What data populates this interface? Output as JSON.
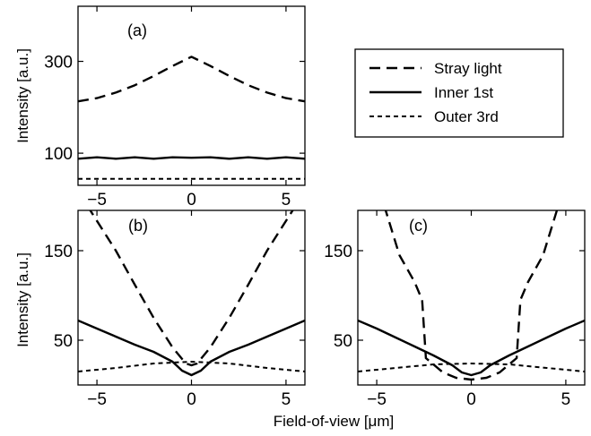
{
  "figure": {
    "xlabel": "Field-of-view [μm]",
    "ylabel": "Intensity [a.u.]"
  },
  "legend": {
    "placement": "top-right",
    "entries": [
      {
        "label": "Stray light",
        "style": "long-dash"
      },
      {
        "label": "Inner 1st",
        "style": "solid"
      },
      {
        "label": "Outer 3rd",
        "style": "short-dash"
      }
    ]
  },
  "chart_data": [
    {
      "panel": "a",
      "label": "(a)",
      "type": "line",
      "xlim": [
        -6,
        6
      ],
      "ylim": [
        30,
        420
      ],
      "xticks": [
        -5,
        0,
        5
      ],
      "yticks": [
        100,
        300
      ],
      "ylabel": "Intensity [a.u.]",
      "series": [
        {
          "name": "Stray light",
          "style": "long-dash",
          "x": [
            -6,
            -5,
            -4,
            -3,
            -2,
            -1,
            0,
            1,
            2,
            3,
            4,
            5,
            6
          ],
          "y": [
            213,
            220,
            232,
            248,
            268,
            290,
            310,
            290,
            268,
            248,
            232,
            220,
            213
          ]
        },
        {
          "name": "Inner 1st",
          "style": "solid",
          "x": [
            -6,
            -5,
            -4,
            -3,
            -2,
            -1,
            0,
            1,
            2,
            3,
            4,
            5,
            6
          ],
          "y": [
            88,
            91,
            88,
            91,
            88,
            91,
            90,
            91,
            88,
            91,
            88,
            91,
            88
          ]
        },
        {
          "name": "Outer 3rd",
          "style": "short-dash",
          "x": [
            -6,
            6
          ],
          "y": [
            44,
            44
          ]
        }
      ]
    },
    {
      "panel": "b",
      "label": "(b)",
      "type": "line",
      "xlim": [
        -6,
        6
      ],
      "ylim": [
        0,
        195
      ],
      "xticks": [
        -5,
        0,
        5
      ],
      "yticks": [
        50,
        150
      ],
      "ylabel": "Intensity [a.u.]",
      "series": [
        {
          "name": "Stray light",
          "style": "long-dash",
          "x": [
            -5.5,
            -4,
            -3,
            -2,
            -1,
            -0.3,
            0,
            0.3,
            1,
            2,
            3,
            4,
            5.5
          ],
          "y": [
            200,
            150,
            112,
            75,
            42,
            24,
            22,
            24,
            42,
            75,
            112,
            150,
            200
          ]
        },
        {
          "name": "Inner 1st",
          "style": "solid",
          "x": [
            -6,
            -5,
            -4,
            -3,
            -2,
            -1,
            -0.5,
            0,
            0.5,
            1,
            2,
            3,
            4,
            5,
            6
          ],
          "y": [
            72,
            63,
            54,
            45,
            37,
            26,
            16,
            11,
            16,
            26,
            37,
            45,
            54,
            63,
            72
          ]
        },
        {
          "name": "Outer 3rd",
          "style": "short-dash",
          "x": [
            -6,
            -4,
            -2,
            0,
            2,
            4,
            6
          ],
          "y": [
            15,
            19,
            24,
            26,
            24,
            19,
            15
          ]
        }
      ]
    },
    {
      "panel": "c",
      "label": "(c)",
      "type": "line",
      "xlim": [
        -6,
        6
      ],
      "ylim": [
        0,
        195
      ],
      "xticks": [
        -5,
        0,
        5
      ],
      "yticks": [
        50,
        150
      ],
      "series": [
        {
          "name": "Stray light",
          "style": "long-dash",
          "x": [
            -4.6,
            -3.8,
            -3,
            -2.6,
            -2.4,
            -1.5,
            -0.8,
            0,
            0.8,
            1.5,
            2.4,
            2.6,
            3,
            3.8,
            4.6
          ],
          "y": [
            200,
            145,
            115,
            95,
            30,
            14,
            8,
            6,
            8,
            14,
            30,
            95,
            115,
            145,
            200
          ]
        },
        {
          "name": "Inner 1st",
          "style": "solid",
          "x": [
            -6,
            -5,
            -4,
            -3,
            -2,
            -1,
            -0.5,
            0,
            0.5,
            1,
            2,
            3,
            4,
            5,
            6
          ],
          "y": [
            72,
            63,
            53,
            43,
            33,
            22,
            14,
            11,
            14,
            22,
            33,
            43,
            53,
            63,
            72
          ]
        },
        {
          "name": "Outer 3rd",
          "style": "short-dash",
          "x": [
            -6,
            -4,
            -2,
            0,
            2,
            4,
            6
          ],
          "y": [
            15,
            19,
            23,
            24,
            23,
            19,
            15
          ]
        }
      ]
    }
  ]
}
